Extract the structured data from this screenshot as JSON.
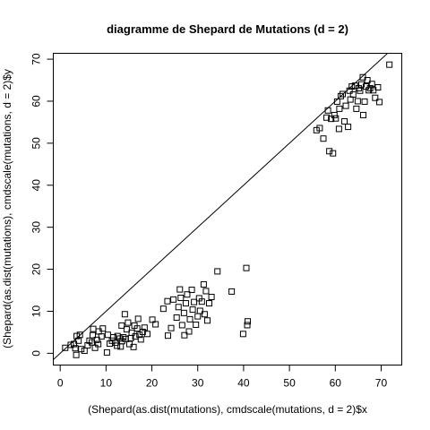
{
  "chart_data": {
    "type": "scatter",
    "title": "diagramme de Shepard de Mutations (d = 2)",
    "xlabel": "(Shepard(as.dist(mutations), cmdscale(mutations, d = 2)$x",
    "ylabel": "(Shepard(as.dist(mutations), cmdscale(mutations, d = 2)$y",
    "xlim": [
      -1.5,
      74.5
    ],
    "ylim": [
      -2.8,
      71.4
    ],
    "x_ticks": [
      0,
      10,
      20,
      30,
      40,
      50,
      60,
      70
    ],
    "y_ticks": [
      0,
      10,
      20,
      30,
      40,
      50,
      60,
      70
    ],
    "reference_line": {
      "intercept": 0,
      "slope": 1
    },
    "marker": "open-square",
    "grid": false,
    "points": [
      [
        1.1,
        1.3
      ],
      [
        2.3,
        2.0
      ],
      [
        3.0,
        2.2
      ],
      [
        3.3,
        1.2
      ],
      [
        3.5,
        -0.4
      ],
      [
        3.6,
        4.1
      ],
      [
        4.0,
        3.0
      ],
      [
        4.3,
        4.4
      ],
      [
        4.6,
        1.0
      ],
      [
        5.3,
        0.6
      ],
      [
        6.0,
        1.9
      ],
      [
        6.4,
        3.0
      ],
      [
        6.9,
        2.6
      ],
      [
        7.1,
        4.3
      ],
      [
        7.2,
        5.8
      ],
      [
        7.6,
        1.3
      ],
      [
        8.0,
        3.2
      ],
      [
        8.3,
        2.2
      ],
      [
        8.4,
        5.2
      ],
      [
        9.0,
        4.0
      ],
      [
        9.3,
        5.9
      ],
      [
        10.2,
        0.2
      ],
      [
        10.4,
        4.4
      ],
      [
        10.8,
        2.3
      ],
      [
        11.3,
        3.0
      ],
      [
        11.6,
        3.8
      ],
      [
        12.1,
        2.5
      ],
      [
        12.4,
        1.8
      ],
      [
        12.5,
        4.1
      ],
      [
        13.0,
        3.5
      ],
      [
        13.2,
        1.6
      ],
      [
        13.4,
        6.6
      ],
      [
        13.5,
        2.9
      ],
      [
        13.8,
        3.8
      ],
      [
        14.1,
        9.3
      ],
      [
        14.3,
        3.4
      ],
      [
        14.5,
        5.7
      ],
      [
        14.8,
        7.3
      ],
      [
        15.1,
        2.2
      ],
      [
        15.4,
        3.6
      ],
      [
        15.6,
        4.9
      ],
      [
        16.0,
        1.5
      ],
      [
        16.2,
        6.6
      ],
      [
        16.4,
        4.0
      ],
      [
        16.8,
        5.9
      ],
      [
        17.0,
        8.2
      ],
      [
        17.3,
        4.4
      ],
      [
        17.6,
        3.3
      ],
      [
        18.0,
        5.1
      ],
      [
        18.4,
        6.1
      ],
      [
        19.0,
        4.6
      ],
      [
        20.1,
        8.0
      ],
      [
        20.8,
        6.9
      ],
      [
        22.5,
        10.6
      ],
      [
        23.4,
        12.4
      ],
      [
        23.5,
        4.2
      ],
      [
        24.2,
        6.0
      ],
      [
        24.7,
        12.8
      ],
      [
        25.4,
        8.5
      ],
      [
        25.8,
        11.0
      ],
      [
        26.1,
        15.2
      ],
      [
        26.3,
        13.2
      ],
      [
        26.6,
        6.7
      ],
      [
        27.0,
        9.6
      ],
      [
        27.1,
        4.3
      ],
      [
        27.4,
        11.9
      ],
      [
        27.7,
        14.0
      ],
      [
        28.1,
        5.2
      ],
      [
        28.3,
        8.1
      ],
      [
        28.7,
        15.1
      ],
      [
        28.9,
        10.4
      ],
      [
        29.2,
        12.2
      ],
      [
        29.6,
        6.8
      ],
      [
        30.0,
        8.8
      ],
      [
        30.3,
        13.1
      ],
      [
        30.5,
        10.1
      ],
      [
        30.9,
        12.3
      ],
      [
        31.3,
        16.4
      ],
      [
        31.5,
        9.3
      ],
      [
        31.8,
        14.8
      ],
      [
        32.1,
        7.8
      ],
      [
        32.5,
        11.9
      ],
      [
        33.0,
        13.4
      ],
      [
        34.3,
        19.5
      ],
      [
        37.4,
        14.7
      ],
      [
        39.9,
        4.6
      ],
      [
        40.6,
        20.3
      ],
      [
        40.8,
        6.7
      ],
      [
        40.9,
        7.6
      ],
      [
        55.9,
        53.1
      ],
      [
        56.6,
        53.6
      ],
      [
        57.4,
        51.1
      ],
      [
        58.1,
        56.1
      ],
      [
        58.4,
        57.8
      ],
      [
        58.7,
        48.1
      ],
      [
        59.1,
        55.8
      ],
      [
        59.5,
        47.6
      ],
      [
        59.8,
        56.7
      ],
      [
        60.1,
        55.9
      ],
      [
        60.4,
        59.9
      ],
      [
        60.8,
        53.4
      ],
      [
        60.9,
        58.2
      ],
      [
        61.2,
        61.2
      ],
      [
        61.6,
        61.7
      ],
      [
        62.0,
        55.2
      ],
      [
        62.3,
        58.9
      ],
      [
        62.8,
        53.9
      ],
      [
        63.1,
        62.5
      ],
      [
        63.3,
        60.4
      ],
      [
        63.6,
        63.5
      ],
      [
        63.9,
        61.6
      ],
      [
        64.3,
        63.7
      ],
      [
        64.6,
        58.2
      ],
      [
        64.9,
        60.0
      ],
      [
        65.1,
        63.1
      ],
      [
        65.4,
        62.5
      ],
      [
        65.7,
        64.0
      ],
      [
        66.0,
        65.7
      ],
      [
        66.1,
        56.7
      ],
      [
        66.4,
        59.9
      ],
      [
        66.7,
        63.5
      ],
      [
        67.0,
        65.0
      ],
      [
        67.3,
        62.6
      ],
      [
        67.6,
        63.1
      ],
      [
        68.0,
        64.1
      ],
      [
        68.3,
        62.6
      ],
      [
        68.7,
        60.8
      ],
      [
        69.3,
        63.3
      ],
      [
        69.6,
        59.8
      ],
      [
        71.8,
        68.7
      ]
    ]
  }
}
